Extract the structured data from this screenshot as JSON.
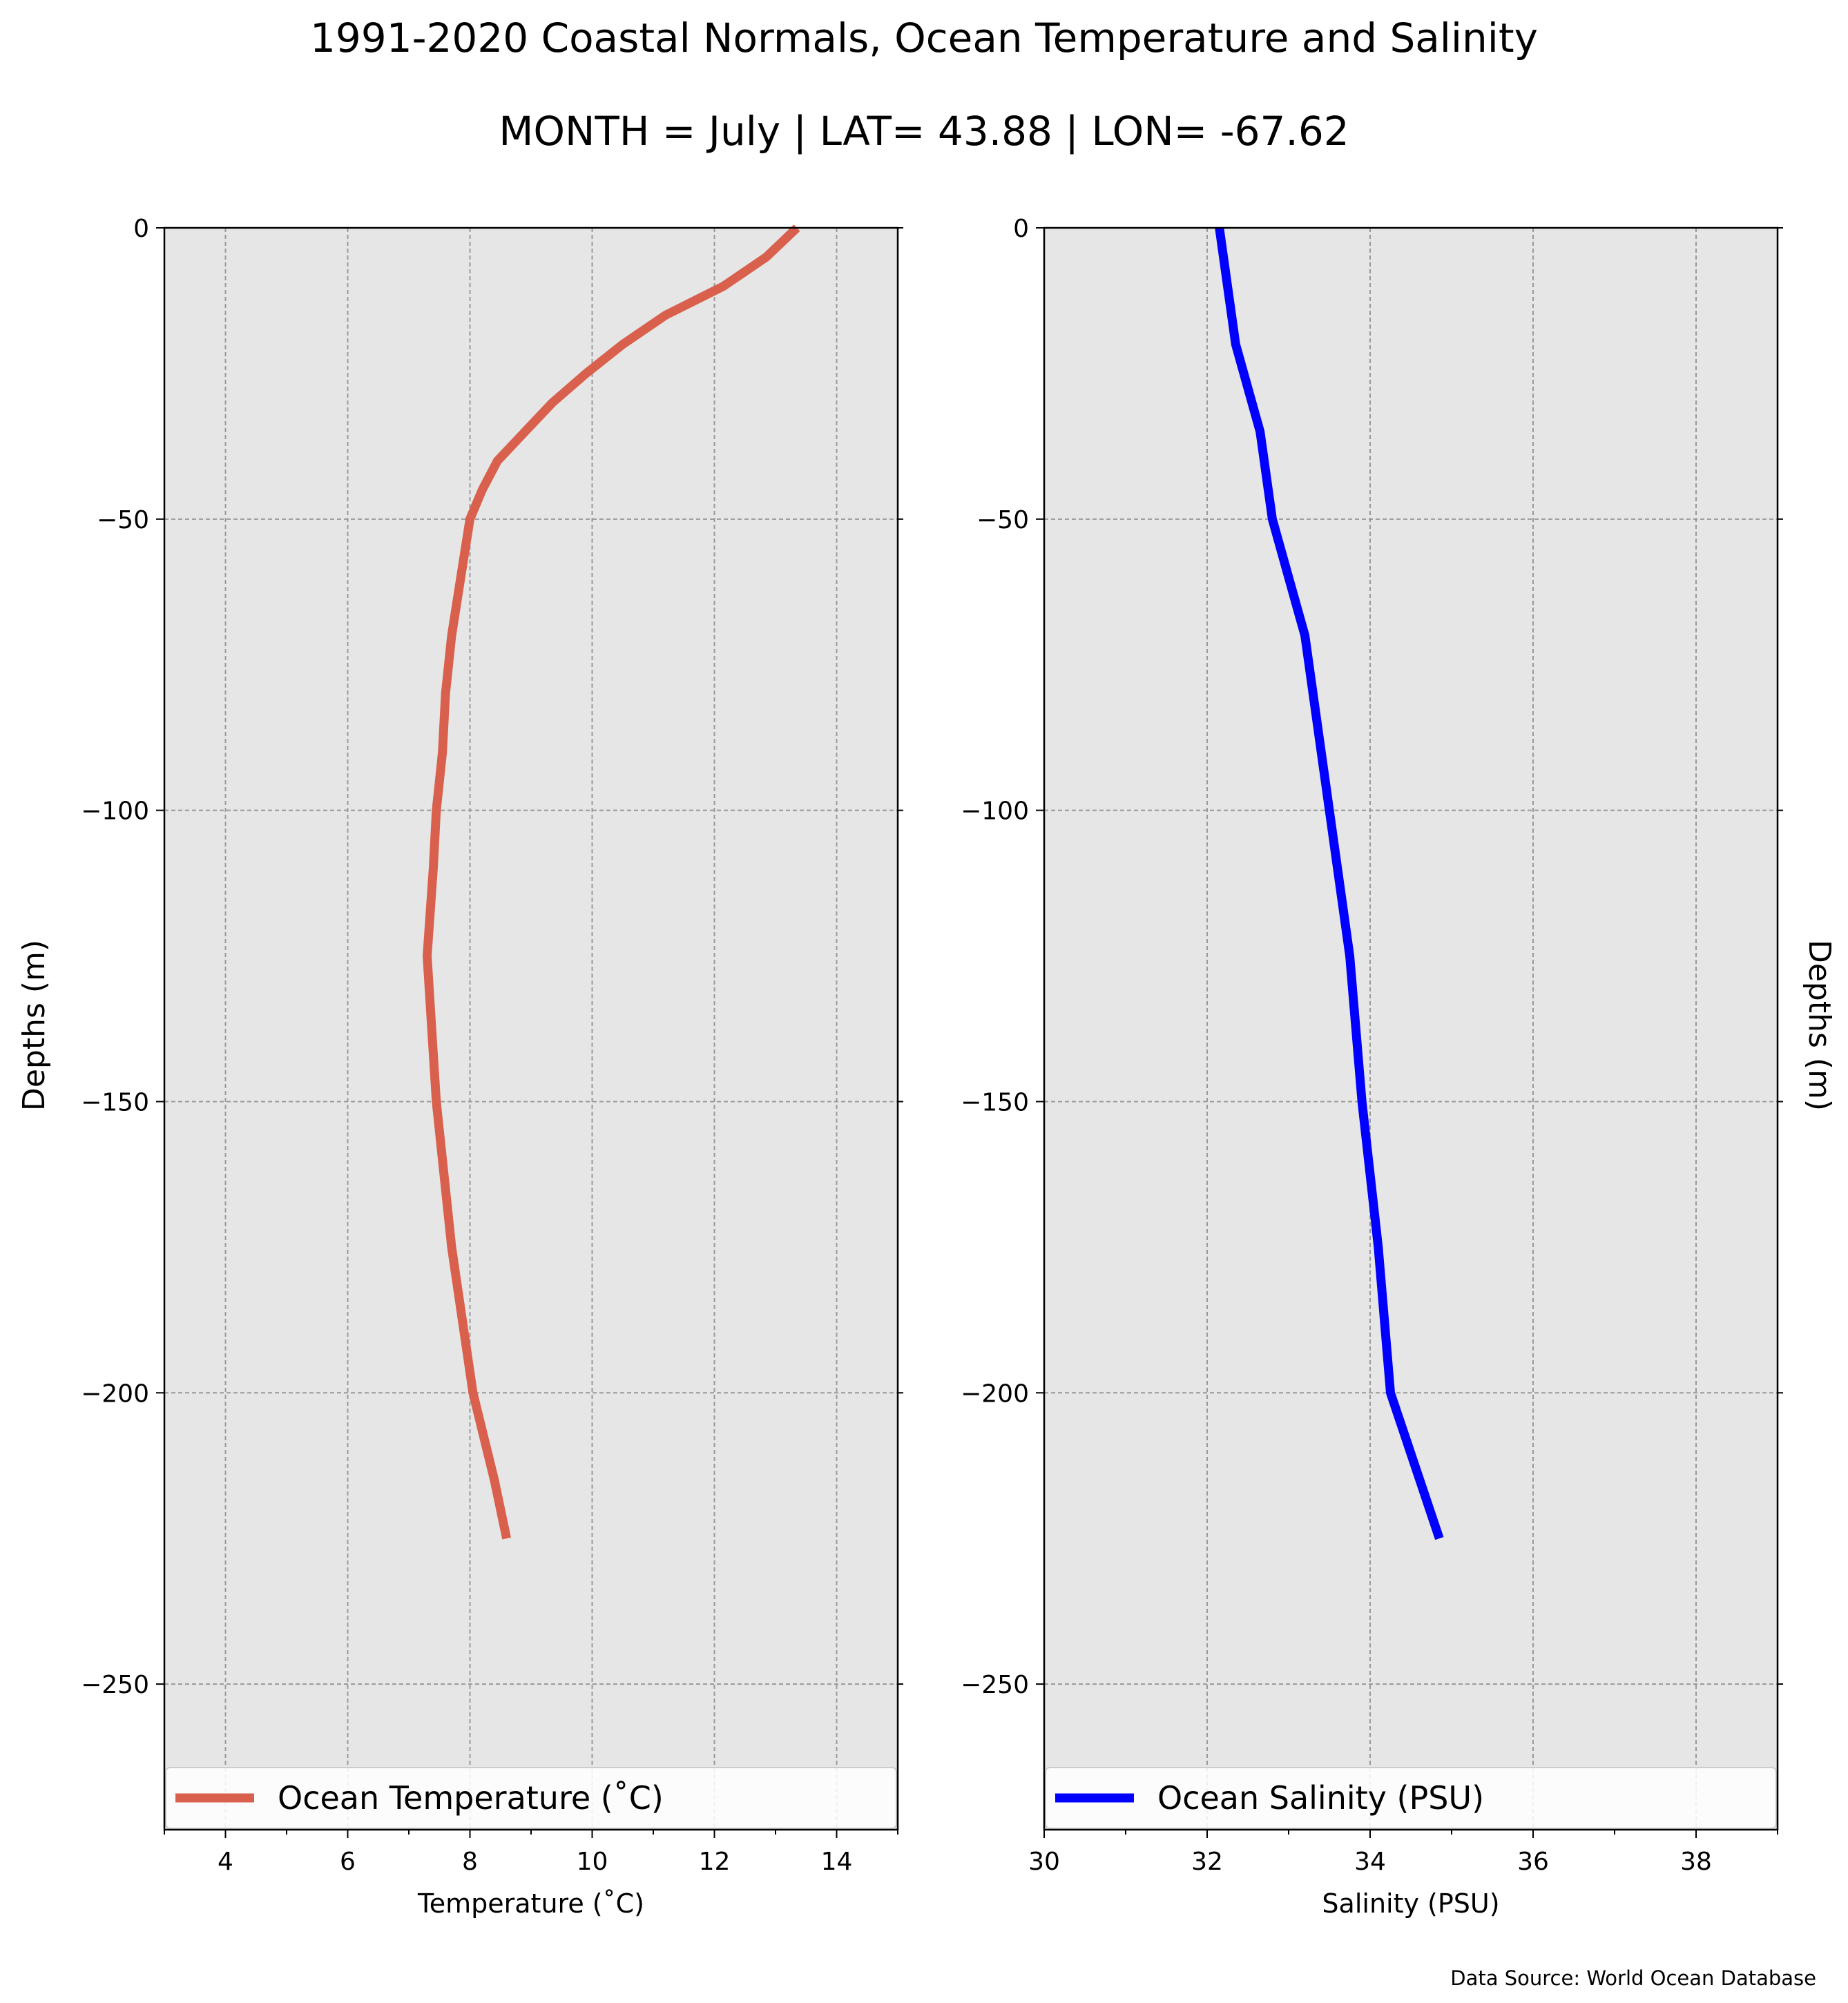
{
  "figure": {
    "title": "1991-2020 Coastal Normals, Ocean Temperature and Salinity",
    "subtitle": "MONTH = July | LAT= 43.88 | LON= -67.62",
    "source": "Data Source: World Ocean Database",
    "panel_background": "#e6e6e6",
    "grid_color": "#999999"
  },
  "chart_data": [
    {
      "type": "line",
      "xlabel": "Temperature (˚C)",
      "ylabel": "Depths (m)",
      "xlim": [
        3,
        15
      ],
      "ylim": [
        -275,
        0
      ],
      "xticks": [
        4,
        6,
        8,
        10,
        12,
        14
      ],
      "xtick_labels": [
        "4",
        "6",
        "8",
        "10",
        "12",
        "14"
      ],
      "yticks": [
        0,
        -50,
        -100,
        -150,
        -200,
        -250
      ],
      "ytick_labels": [
        "0",
        "−50",
        "−100",
        "−150",
        "−200",
        "−250"
      ],
      "grid": true,
      "legend": "lower center",
      "series": [
        {
          "name": "Ocean Temperature (˚C)",
          "color": "#d9604c",
          "x": [
            13.35,
            12.85,
            12.15,
            11.2,
            10.5,
            9.9,
            9.35,
            8.9,
            8.45,
            8.2,
            8.0,
            7.85,
            7.7,
            7.6,
            7.55,
            7.5,
            7.45,
            7.4,
            7.3,
            7.45,
            7.7,
            8.05,
            8.4,
            8.6
          ],
          "y": [
            0,
            -5,
            -10,
            -15,
            -20,
            -25,
            -30,
            -35,
            -40,
            -45,
            -50,
            -60,
            -70,
            -80,
            -90,
            -95,
            -100,
            -110,
            -125,
            -150,
            -175,
            -200,
            -215,
            -225
          ]
        }
      ]
    },
    {
      "type": "line",
      "xlabel": "Salinity (PSU)",
      "ylabel": "Depths (m)",
      "xlim": [
        30,
        39
      ],
      "ylim": [
        -275,
        0
      ],
      "xticks": [
        30,
        32,
        34,
        36,
        38
      ],
      "xtick_labels": [
        "30",
        "32",
        "34",
        "36",
        "38"
      ],
      "yticks": [
        0,
        -50,
        -100,
        -150,
        -200,
        -250
      ],
      "ytick_labels": [
        "0",
        "−50",
        "−100",
        "−150",
        "−200",
        "−250"
      ],
      "grid": true,
      "legend": "lower center",
      "series": [
        {
          "name": "Ocean Salinity (PSU)",
          "color": "#0000ff",
          "x": [
            32.15,
            32.2,
            32.3,
            32.35,
            32.45,
            32.55,
            32.65,
            32.75,
            32.8,
            32.9,
            33.0,
            33.1,
            33.2,
            33.3,
            33.4,
            33.5,
            33.75,
            33.9,
            34.1,
            34.25,
            34.85
          ],
          "y": [
            0,
            -5,
            -15,
            -20,
            -25,
            -30,
            -35,
            -45,
            -50,
            -55,
            -60,
            -65,
            -70,
            -80,
            -90,
            -100,
            -125,
            -150,
            -175,
            -200,
            -225
          ]
        }
      ]
    }
  ]
}
